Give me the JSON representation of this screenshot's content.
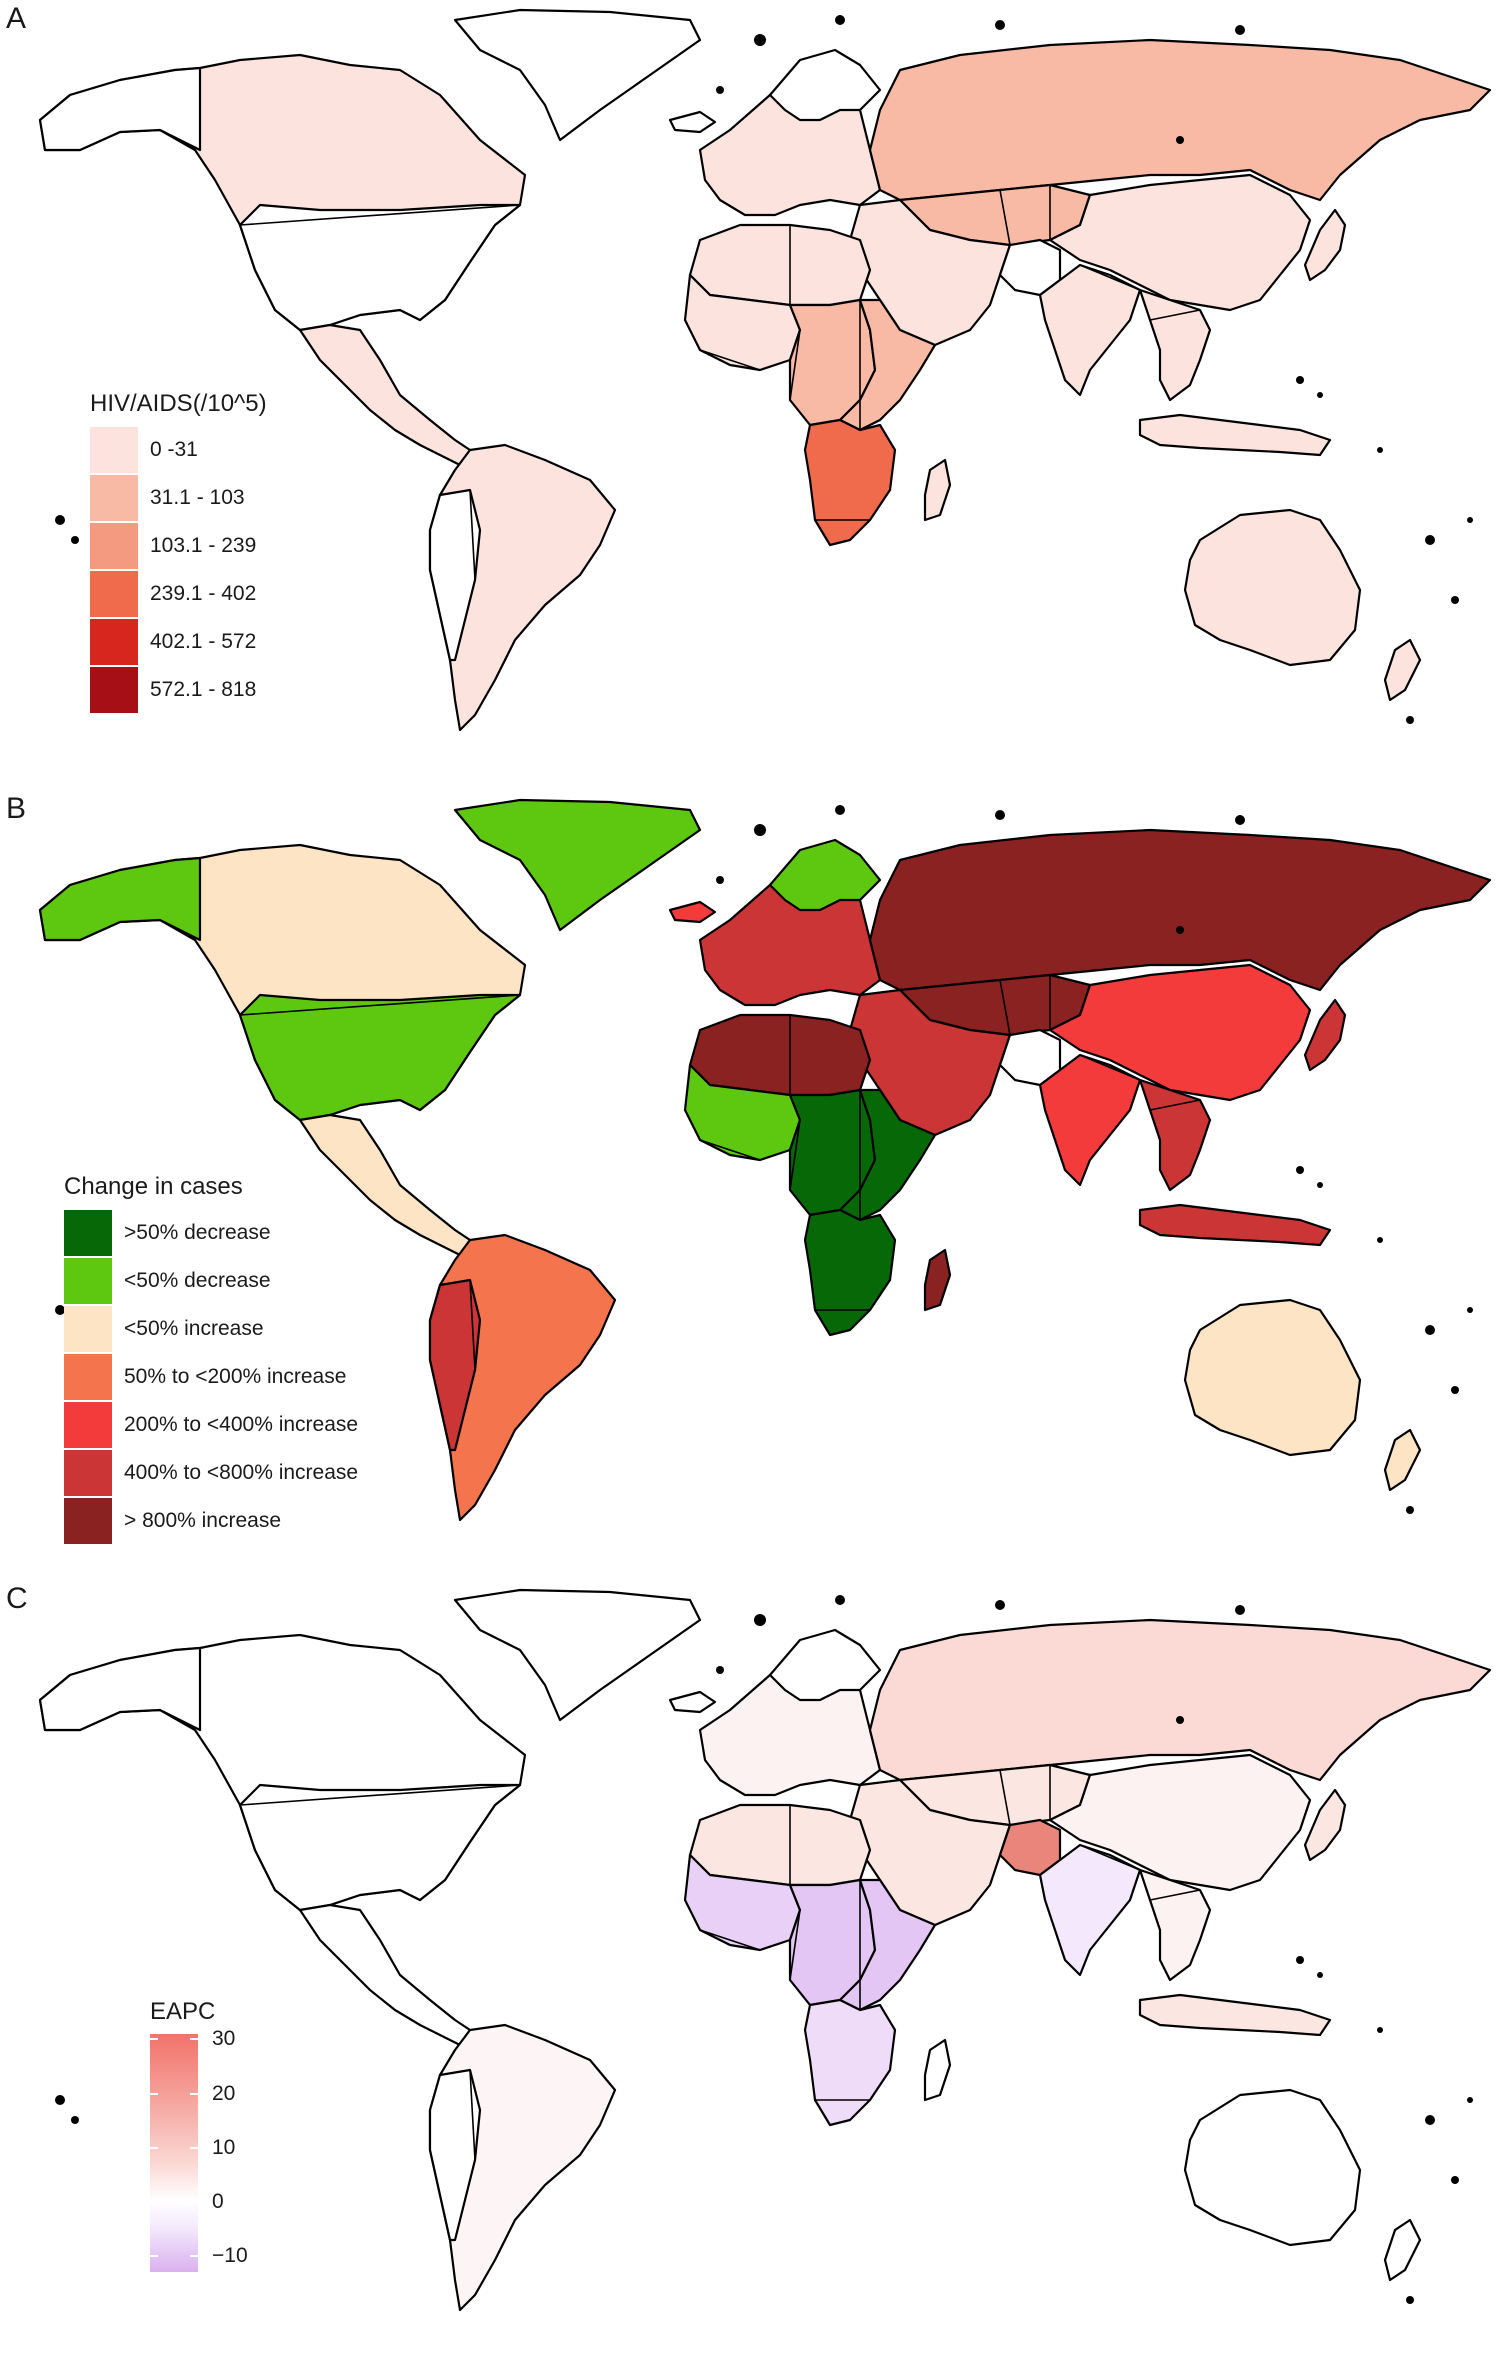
{
  "panels": {
    "a": {
      "letter": "A"
    },
    "b": {
      "letter": "B"
    },
    "c": {
      "letter": "C"
    }
  },
  "legend_a": {
    "title": "HIV/AIDS(/10^5)",
    "items": [
      {
        "label": "0 -31",
        "color": "#fce3dd"
      },
      {
        "label": "31.1 - 103",
        "color": "#f8b9a5"
      },
      {
        "label": "103.1 - 239",
        "color": "#f49a80"
      },
      {
        "label": "239.1 - 402",
        "color": "#ef6b4c"
      },
      {
        "label": "402.1 - 572",
        "color": "#d7261e"
      },
      {
        "label": "572.1 - 818",
        "color": "#a50f15"
      }
    ]
  },
  "legend_b": {
    "title": "Change in cases",
    "items": [
      {
        "label": ">50% decrease",
        "color": "#076808"
      },
      {
        "label": "<50% decrease",
        "color": "#5ec70f"
      },
      {
        "label": "<50% increase",
        "color": "#fde4c5"
      },
      {
        "label": "50% to <200% increase",
        "color": "#f3744d"
      },
      {
        "label": "200% to <400% increase",
        "color": "#f33b3b"
      },
      {
        "label": "400% to <800% increase",
        "color": "#cc3535"
      },
      {
        "label": "> 800% increase",
        "color": "#8a2222"
      }
    ]
  },
  "legend_c": {
    "title": "EAPC",
    "ticks": [
      "30",
      "20",
      "10",
      "0",
      "−10"
    ],
    "tick_values": [
      30,
      20,
      10,
      0,
      -10
    ],
    "range": [
      -13,
      31
    ],
    "low_color": "#d9b0ef",
    "mid_color": "#ffffff",
    "high_color": "#f1736a"
  },
  "region_colors": {
    "a": {
      "north_america": "#fce3dd",
      "greenland": "#ffffff",
      "latin_america": "#fce3dd",
      "south_america": "#fce3dd",
      "europe": "#fce3dd",
      "russia": "#f8b9a5",
      "central_asia": "#f8b9a5",
      "middle_east": "#fce3dd",
      "china": "#fce3dd",
      "south_asia": "#fce3dd",
      "southeast_asia": "#fce3dd",
      "japan": "#fce3dd",
      "north_africa": "#fce3dd",
      "west_africa": "#fce3dd",
      "central_africa": "#f8b9a5",
      "east_africa": "#f8b9a5",
      "southern_africa": "#ef6b4c",
      "madagascar": "#fce3dd",
      "australia": "#fce3dd",
      "new_zealand": "#fce3dd",
      "indonesia": "#fce3dd",
      "iceland": "#ffffff"
    },
    "b": {
      "north_america": "#fde4c5",
      "greenland": "#5ec70f",
      "alaska": "#5ec70f",
      "usa": "#5ec70f",
      "latin_america": "#fde4c5",
      "south_america": "#f3744d",
      "andes": "#cc3535",
      "europe": "#cc3535",
      "scandinavia": "#5ec70f",
      "russia": "#8a2222",
      "central_asia": "#8a2222",
      "middle_east": "#cc3535",
      "china": "#f33b3b",
      "south_asia": "#f33b3b",
      "southeast_asia": "#cc3535",
      "japan": "#cc3535",
      "north_africa": "#8a2222",
      "west_africa": "#5ec70f",
      "central_africa": "#076808",
      "east_africa": "#076808",
      "southern_africa": "#076808",
      "madagascar": "#8a2222",
      "australia": "#fde4c5",
      "new_zealand": "#fde4c5",
      "indonesia": "#cc3535",
      "iceland": "#f33b3b"
    },
    "c": {
      "north_america": "#ffffff",
      "greenland": "#ffffff",
      "latin_america": "#ffffff",
      "south_america": "#fdf5f5",
      "europe": "#fdf2f2",
      "russia": "#fbd9d5",
      "central_asia": "#fbe6e2",
      "middle_east": "#fbe6e2",
      "china": "#fdf2f2",
      "south_asia": "#f3e8fc",
      "southeast_asia": "#fdf2f2",
      "japan": "#fbe6e2",
      "north_africa": "#fbe6e2",
      "west_africa": "#e8d0f6",
      "central_africa": "#e3c6f4",
      "east_africa": "#e3c6f4",
      "southern_africa": "#efdcf9",
      "madagascar": "#ffffff",
      "australia": "#ffffff",
      "new_zealand": "#ffffff",
      "indonesia": "#fbe6e2",
      "iceland": "#ffffff",
      "pakistan": "#e9857a"
    }
  }
}
